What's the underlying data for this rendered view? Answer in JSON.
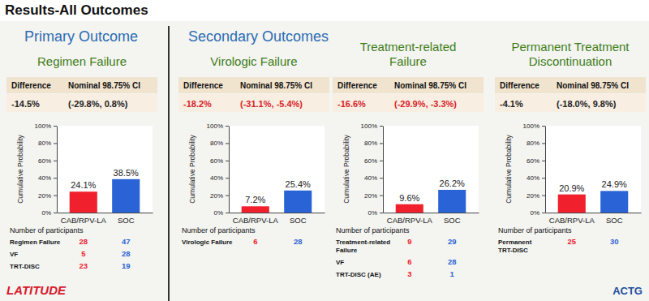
{
  "title": "Results-All Outcomes",
  "section_titles": [
    "Primary Outcome",
    "Secondary Outcomes"
  ],
  "footer": {
    "left": "LATITUDE",
    "right": "ACTG"
  },
  "panels": [
    {
      "difference_header": "Difference",
      "ci_header": "Nominal 98.75% CI",
      "difference": "-14.5%",
      "ci": "(-29.8%, 0.8%)",
      "color": "#222222",
      "participants_title": "Number of participants",
      "rows": [
        {
          "label": "Regimen Failure",
          "values": [
            28,
            47
          ]
        },
        {
          "label": "VF",
          "values": [
            5,
            28
          ]
        },
        {
          "label": "TRT-DISC",
          "values": [
            23,
            19
          ]
        }
      ]
    },
    {
      "difference_header": "Difference",
      "ci_header": "Nominal 98.75% CI",
      "difference": "-18.2%",
      "ci": "(-31.1%, -5.4%)",
      "color": "#d81e2a",
      "participants_title": "Number of participants",
      "rows": [
        {
          "label": "Virologic Failure",
          "values": [
            6,
            28
          ]
        }
      ]
    },
    {
      "difference_header": "Difference",
      "ci_header": "Nominal 98.75% CI",
      "difference": "-16.6%",
      "ci": "(-29.9%, -3.3%)",
      "color": "#d81e2a",
      "participants_title": "Number of participants",
      "rows": [
        {
          "label": "Treatment-related Failure",
          "values": [
            9,
            29
          ]
        },
        {
          "label": "VF",
          "values": [
            6,
            28
          ]
        },
        {
          "label": "TRT-DISC (AE)",
          "values": [
            3,
            1
          ]
        }
      ]
    },
    {
      "difference_header": "Difference",
      "ci_header": "Nominal 98.75% CI",
      "difference": "-4.1%",
      "ci": "(-18.0%, 9.8%)",
      "color": "#222222",
      "participants_title": "Number of participants",
      "rows": [
        {
          "label": "Permanent TRT-DISC",
          "values": [
            25,
            30
          ]
        }
      ]
    }
  ],
  "chart_data": [
    {
      "type": "bar",
      "title": "Regimen Failure",
      "y_label": "Cumulative Probability",
      "categories": [
        "CAB/RPV-LA",
        "SOC"
      ],
      "values": [
        24.1,
        38.5
      ],
      "value_labels": [
        "24.1%",
        "38.5%"
      ],
      "colors": [
        "#f0212d",
        "#2a63d6"
      ],
      "ylim": [
        0,
        100
      ],
      "yticks": [
        {
          "value": 0,
          "label": "0%"
        },
        {
          "value": 20,
          "label": "20%"
        },
        {
          "value": 40,
          "label": "40%"
        },
        {
          "value": 60,
          "label": "60%"
        },
        {
          "value": 80,
          "label": "80%"
        },
        {
          "value": 100,
          "label": "100%"
        }
      ],
      "grid": false,
      "data_labels": true
    },
    {
      "type": "bar",
      "title": "Virologic Failure",
      "y_label": "Cumulative Probability",
      "categories": [
        "CAB/RPV-LA",
        "SOC"
      ],
      "values": [
        7.2,
        25.4
      ],
      "value_labels": [
        "7.2%",
        "25.4%"
      ],
      "colors": [
        "#f0212d",
        "#2a63d6"
      ],
      "ylim": [
        0,
        100
      ],
      "yticks": [
        {
          "value": 0,
          "label": "0%"
        },
        {
          "value": 20,
          "label": "20%"
        },
        {
          "value": 40,
          "label": "40%"
        },
        {
          "value": 60,
          "label": "60%"
        },
        {
          "value": 80,
          "label": "80%"
        },
        {
          "value": 100,
          "label": "100%"
        }
      ],
      "grid": false,
      "data_labels": true
    },
    {
      "type": "bar",
      "title": "Treatment-related Failure",
      "y_label": "Cumulative Probability",
      "categories": [
        "CAB/RPV-LA",
        "SOC"
      ],
      "values": [
        9.6,
        26.2
      ],
      "value_labels": [
        "9.6%",
        "26.2%"
      ],
      "colors": [
        "#f0212d",
        "#2a63d6"
      ],
      "ylim": [
        0,
        100
      ],
      "yticks": [
        {
          "value": 0,
          "label": "0%"
        },
        {
          "value": 20,
          "label": "20%"
        },
        {
          "value": 40,
          "label": "40%"
        },
        {
          "value": 60,
          "label": "60%"
        },
        {
          "value": 80,
          "label": "80%"
        },
        {
          "value": 100,
          "label": "100%"
        }
      ],
      "grid": false,
      "data_labels": true
    },
    {
      "type": "bar",
      "title": "Permanent Treatment Discontinuation",
      "y_label": "Cumulative Probability",
      "categories": [
        "CAB/RPV-LA",
        "SOC"
      ],
      "values": [
        20.9,
        24.9
      ],
      "value_labels": [
        "20.9%",
        "24.9%"
      ],
      "colors": [
        "#f0212d",
        "#2a63d6"
      ],
      "ylim": [
        0,
        100
      ],
      "yticks": [
        {
          "value": 0,
          "label": "0%"
        },
        {
          "value": 20,
          "label": "20%"
        },
        {
          "value": 40,
          "label": "40%"
        },
        {
          "value": 60,
          "label": "60%"
        },
        {
          "value": 80,
          "label": "80%"
        },
        {
          "value": 100,
          "label": "100%"
        }
      ],
      "grid": false,
      "data_labels": true
    }
  ]
}
